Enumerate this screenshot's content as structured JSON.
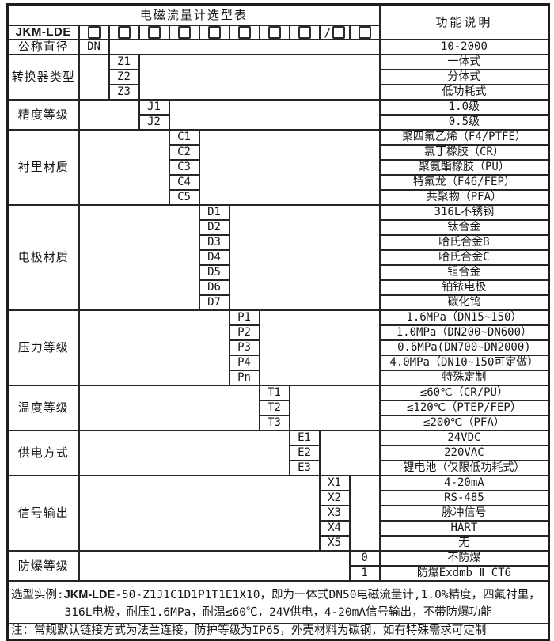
{
  "page": {
    "title": "电磁流量计选型表",
    "function_header": "功能说明",
    "model": {
      "label": "JKM-LDE",
      "boxes": [
        {
          "prefix": ""
        },
        {
          "prefix": ""
        },
        {
          "prefix": ""
        },
        {
          "prefix": ""
        },
        {
          "prefix": ""
        },
        {
          "prefix": ""
        },
        {
          "prefix": ""
        },
        {
          "prefix": ""
        },
        {
          "prefix": "/"
        },
        {
          "prefix": ""
        }
      ]
    },
    "groups": [
      {
        "id": "nominal-diameter",
        "category": "公称直径",
        "code_col": 1,
        "rows": [
          {
            "code": "DN",
            "desc": "10-2000"
          }
        ]
      },
      {
        "id": "converter-type",
        "category": "转换器类型",
        "code_col": 2,
        "rows": [
          {
            "code": "Z1",
            "desc": "一体式"
          },
          {
            "code": "Z2",
            "desc": "分体式"
          },
          {
            "code": "Z3",
            "desc": "低功耗式"
          }
        ]
      },
      {
        "id": "accuracy-class",
        "category": "精度等级",
        "code_col": 3,
        "rows": [
          {
            "code": "J1",
            "desc": "1.0级"
          },
          {
            "code": "J2",
            "desc": "0.5级"
          }
        ]
      },
      {
        "id": "liner-material",
        "category": "衬里材质",
        "code_col": 4,
        "rows": [
          {
            "code": "C1",
            "desc": "聚四氟乙烯（F4/PTFE）"
          },
          {
            "code": "C2",
            "desc": "氯丁橡胶（CR）"
          },
          {
            "code": "C3",
            "desc": "聚氨酯橡胶（PU）"
          },
          {
            "code": "C4",
            "desc": "特氟龙（F46/FEP）"
          },
          {
            "code": "C5",
            "desc": "共聚物（PFA）"
          }
        ]
      },
      {
        "id": "electrode-material",
        "category": "电极材质",
        "code_col": 5,
        "rows": [
          {
            "code": "D1",
            "desc": "316L不锈钢"
          },
          {
            "code": "D2",
            "desc": "钛合金"
          },
          {
            "code": "D3",
            "desc": "哈氏合金B"
          },
          {
            "code": "D4",
            "desc": "哈氏合金C"
          },
          {
            "code": "D5",
            "desc": "钽合金"
          },
          {
            "code": "D6",
            "desc": "铂铱电极"
          },
          {
            "code": "D7",
            "desc": "碳化钨"
          }
        ]
      },
      {
        "id": "pressure-rating",
        "category": "压力等级",
        "code_col": 6,
        "rows": [
          {
            "code": "P1",
            "desc": "1.6MPa（DN15~150）"
          },
          {
            "code": "P2",
            "desc": "1.0MPa（DN200~DN600）"
          },
          {
            "code": "P3",
            "desc": "0.6MPa(DN700~DN2000)"
          },
          {
            "code": "P4",
            "desc": "4.0MPa（DN10~150可定做）"
          },
          {
            "code": "Pn",
            "desc": "特殊定制"
          }
        ]
      },
      {
        "id": "temperature-rating",
        "category": "温度等级",
        "code_col": 7,
        "rows": [
          {
            "code": "T1",
            "desc": "≤60℃（CR/PU）"
          },
          {
            "code": "T2",
            "desc": "≤120℃（PTEP/FEP）"
          },
          {
            "code": "T3",
            "desc": "≤200℃（PFA）"
          }
        ]
      },
      {
        "id": "power-supply",
        "category": "供电方式",
        "code_col": 8,
        "rows": [
          {
            "code": "E1",
            "desc": "24VDC"
          },
          {
            "code": "E2",
            "desc": "220VAC"
          },
          {
            "code": "E3",
            "desc": "锂电池（仅限低功耗式）"
          }
        ]
      },
      {
        "id": "signal-output",
        "category": "信号输出",
        "code_col": 9,
        "rows": [
          {
            "code": "X1",
            "desc": "4-20mA"
          },
          {
            "code": "X2",
            "desc": "RS-485"
          },
          {
            "code": "X3",
            "desc": "脉冲信号"
          },
          {
            "code": "X4",
            "desc": "HART"
          },
          {
            "code": "X5",
            "desc": "无"
          }
        ]
      },
      {
        "id": "explosion-proof",
        "category": "防爆等级",
        "code_col": 10,
        "rows": [
          {
            "code": "0",
            "desc": "不防爆"
          },
          {
            "code": "1",
            "desc": "防爆Exdmb Ⅱ CT6"
          }
        ]
      }
    ],
    "example": {
      "prefix": "选型实例:",
      "model": "JKM-LDE",
      "rest": "-50-Z1J1C1D1P1T1E1X10，即为一体式DN50电磁流量计,1.0%精度，四氟衬里，",
      "line2": "316L电极，耐压1.6MPa，耐温≤60℃，24V供电，4-20mA信号输出，不带防爆功能"
    },
    "note": "注：常规默认链接方式为法兰连接，防护等级为IP65，外壳材料为碳钢，如有特殊需求可定制",
    "colors": {
      "ink": "#161616",
      "border": "#262626",
      "paper": "#ffffff"
    }
  }
}
